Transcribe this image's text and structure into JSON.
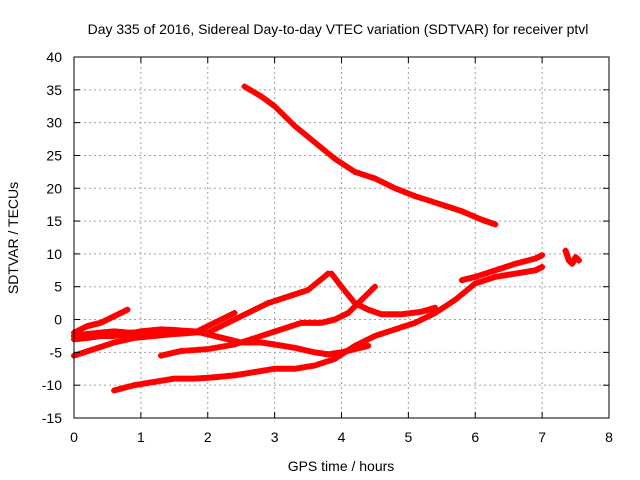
{
  "chart_data": {
    "type": "scatter",
    "title": "Day 335 of 2016, Sidereal Day-to-day VTEC variation (SDTVAR) for receiver ptvl",
    "xlabel": "GPS time / hours",
    "ylabel": "SDTVAR / TECUs",
    "xlim": [
      0,
      8
    ],
    "ylim": [
      -15,
      40
    ],
    "xticks": [
      0,
      1,
      2,
      3,
      4,
      5,
      6,
      7,
      8
    ],
    "yticks": [
      -15,
      -10,
      -5,
      0,
      5,
      10,
      15,
      20,
      25,
      30,
      35,
      40
    ],
    "grid": true,
    "legend": "none",
    "marker_color": "#ff0000",
    "series": [
      {
        "x": [
          2.55,
          2.8,
          3.0,
          3.3,
          3.6,
          3.9,
          4.2,
          4.5,
          4.8,
          5.1,
          5.5,
          5.8,
          6.1,
          6.3
        ],
        "y": [
          35.5,
          34.0,
          32.5,
          29.5,
          27.0,
          24.5,
          22.5,
          21.5,
          20.0,
          18.8,
          17.5,
          16.5,
          15.2,
          14.5
        ]
      },
      {
        "x": [
          0.0,
          0.2,
          0.4,
          0.6,
          0.8,
          1.0,
          1.3,
          1.6,
          1.9,
          2.1,
          2.3,
          2.5,
          2.8,
          3.0,
          3.3,
          3.6,
          3.8,
          4.0,
          4.2,
          4.4
        ],
        "y": [
          -2.5,
          -2.2,
          -2.0,
          -1.8,
          -2.0,
          -2.0,
          -2.0,
          -1.8,
          -2.0,
          -2.5,
          -3.0,
          -3.5,
          -3.5,
          -3.8,
          -4.3,
          -5.0,
          -5.3,
          -5.0,
          -4.5,
          -4.0
        ]
      },
      {
        "x": [
          0.0,
          0.2,
          0.4,
          0.6,
          0.8,
          1.0,
          1.3,
          1.5,
          1.8,
          2.0
        ],
        "y": [
          -3.0,
          -2.8,
          -2.5,
          -2.5,
          -2.2,
          -1.8,
          -1.5,
          -1.6,
          -1.8,
          -2.0
        ]
      },
      {
        "x": [
          0.0,
          0.2,
          0.4,
          0.6,
          0.8
        ],
        "y": [
          -2.0,
          -1.0,
          -0.5,
          0.5,
          1.5
        ]
      },
      {
        "x": [
          0.0,
          0.3,
          0.6,
          0.9,
          1.2,
          1.5,
          1.8,
          2.1,
          2.4
        ],
        "y": [
          -5.5,
          -4.5,
          -3.5,
          -2.8,
          -2.5,
          -2.2,
          -2.0,
          -0.5,
          1.0
        ]
      },
      {
        "x": [
          1.3,
          1.6,
          2.0,
          2.4,
          2.8,
          3.1,
          3.4,
          3.7,
          3.9,
          4.1,
          4.3,
          4.5
        ],
        "y": [
          -5.5,
          -4.8,
          -4.5,
          -3.8,
          -2.5,
          -1.5,
          -0.5,
          -0.5,
          0.0,
          1.0,
          3.0,
          5.0
        ]
      },
      {
        "x": [
          2.0,
          2.3,
          2.6,
          2.9,
          3.2,
          3.5,
          3.8
        ],
        "y": [
          -2.0,
          -0.5,
          1.0,
          2.5,
          3.5,
          4.5,
          7.0
        ]
      },
      {
        "x": [
          3.85,
          4.0,
          4.2,
          4.4,
          4.6,
          4.9,
          5.2,
          5.4
        ],
        "y": [
          7.0,
          5.0,
          2.5,
          1.5,
          0.8,
          0.8,
          1.2,
          1.8
        ]
      },
      {
        "x": [
          0.6,
          0.9,
          1.2,
          1.5,
          1.8,
          2.1,
          2.4,
          2.7,
          3.0,
          3.3,
          3.6,
          3.9,
          4.2,
          4.5,
          4.8,
          5.1,
          5.4,
          5.7,
          6.0,
          6.3,
          6.6,
          6.9,
          7.0
        ],
        "y": [
          -10.8,
          -10.0,
          -9.5,
          -9.0,
          -9.0,
          -8.8,
          -8.5,
          -8.0,
          -7.5,
          -7.5,
          -7.0,
          -6.0,
          -4.0,
          -2.5,
          -1.5,
          -0.5,
          1.0,
          3.0,
          5.5,
          6.5,
          7.0,
          7.5,
          8.0
        ]
      },
      {
        "x": [
          5.8,
          6.0,
          6.3,
          6.6,
          6.9,
          7.0
        ],
        "y": [
          6.0,
          6.5,
          7.5,
          8.5,
          9.3,
          9.8
        ]
      },
      {
        "x": [
          7.35,
          7.4,
          7.45,
          7.5,
          7.55
        ],
        "y": [
          10.5,
          9.0,
          8.5,
          9.5,
          9.0
        ]
      }
    ]
  }
}
